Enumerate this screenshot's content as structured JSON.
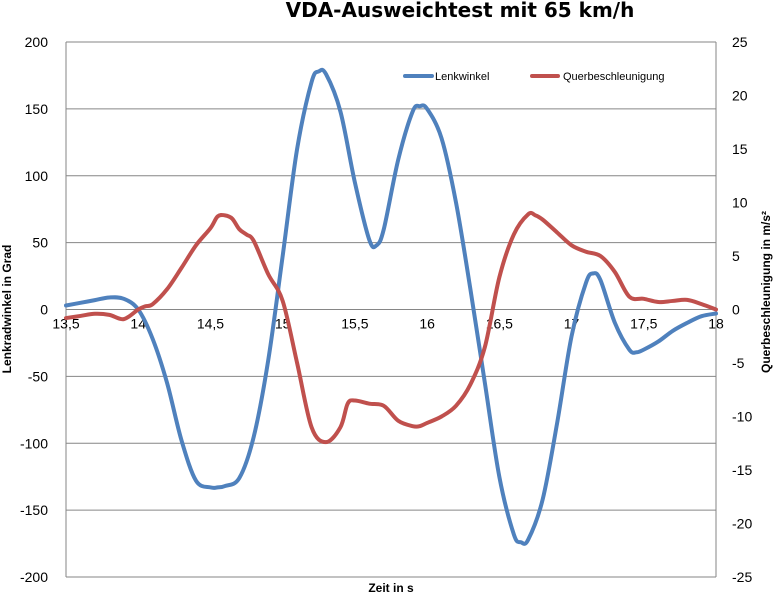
{
  "chart_data": {
    "type": "line",
    "title": "VDA-Ausweichtest mit 65 km/h",
    "xlabel": "Zeit in s",
    "ylabel_left": "Lenkradwinkel in Grad",
    "ylabel_right": "Querbeschleunigung  in m/s²",
    "xlim": [
      13.5,
      18
    ],
    "ylim_left": [
      -200,
      200
    ],
    "ylim_right": [
      -25,
      25
    ],
    "x_ticks": [
      "13,5",
      "14",
      "14,5",
      "15",
      "15,5",
      "16",
      "16,5",
      "17",
      "17,5",
      "18"
    ],
    "x_tick_values": [
      13.5,
      14,
      14.5,
      15,
      15.5,
      16,
      16.5,
      17,
      17.5,
      18
    ],
    "y_left_ticks": [
      "200",
      "150",
      "100",
      "50",
      "0",
      "-50",
      "-100",
      "-150",
      "-200"
    ],
    "y_left_tick_values": [
      200,
      150,
      100,
      50,
      0,
      -50,
      -100,
      -150,
      -200
    ],
    "y_right_ticks": [
      "25",
      "20",
      "15",
      "10",
      "5",
      "0",
      "-5",
      "-10",
      "-15",
      "-20",
      "-25"
    ],
    "y_right_tick_values": [
      25,
      20,
      15,
      10,
      5,
      0,
      -5,
      -10,
      -15,
      -20,
      -25
    ],
    "grid": "horizontal",
    "legend_position": "top-right",
    "series": [
      {
        "name": "Lenkwinkel",
        "axis": "left",
        "color": "#4f81bd",
        "x": [
          13.5,
          13.6,
          13.7,
          13.8,
          13.9,
          14.0,
          14.1,
          14.2,
          14.3,
          14.4,
          14.5,
          14.55,
          14.6,
          14.7,
          14.8,
          14.9,
          15.0,
          15.1,
          15.2,
          15.25,
          15.3,
          15.4,
          15.5,
          15.6,
          15.65,
          15.7,
          15.8,
          15.9,
          15.95,
          16.0,
          16.1,
          16.2,
          16.3,
          16.4,
          16.5,
          16.6,
          16.65,
          16.7,
          16.8,
          16.9,
          17.0,
          17.1,
          17.15,
          17.2,
          17.3,
          17.4,
          17.45,
          17.5,
          17.6,
          17.7,
          17.8,
          17.9,
          18.0
        ],
        "y": [
          3,
          5,
          7,
          9,
          8,
          0,
          -22,
          -55,
          -98,
          -128,
          -133,
          -133,
          -132,
          -126,
          -95,
          -38,
          40,
          120,
          170,
          178,
          176,
          148,
          95,
          52,
          48,
          60,
          112,
          148,
          152,
          150,
          128,
          80,
          15,
          -55,
          -125,
          -168,
          -174,
          -172,
          -142,
          -85,
          -20,
          20,
          27,
          22,
          -10,
          -30,
          -32,
          -30,
          -24,
          -16,
          -10,
          -5,
          -3
        ]
      },
      {
        "name": "Querbeschleunigung",
        "axis": "right",
        "color": "#c0504d",
        "x": [
          13.5,
          13.6,
          13.7,
          13.8,
          13.9,
          14.0,
          14.05,
          14.1,
          14.2,
          14.3,
          14.4,
          14.5,
          14.55,
          14.6,
          14.65,
          14.7,
          14.75,
          14.8,
          14.9,
          15.0,
          15.1,
          15.2,
          15.3,
          15.4,
          15.45,
          15.5,
          15.6,
          15.7,
          15.8,
          15.9,
          15.95,
          16.0,
          16.1,
          16.2,
          16.3,
          16.4,
          16.5,
          16.6,
          16.7,
          16.75,
          16.8,
          16.9,
          17.0,
          17.1,
          17.2,
          17.3,
          17.4,
          17.5,
          17.6,
          17.7,
          17.8,
          17.9,
          18.0
        ],
        "y": [
          -0.8,
          -0.6,
          -0.4,
          -0.5,
          -0.9,
          0.0,
          0.3,
          0.5,
          1.9,
          3.9,
          6.0,
          7.6,
          8.7,
          8.8,
          8.5,
          7.5,
          7.0,
          6.4,
          3.3,
          0.8,
          -5.0,
          -11.0,
          -12.4,
          -11.0,
          -8.8,
          -8.5,
          -8.8,
          -9.0,
          -10.4,
          -10.9,
          -10.9,
          -10.6,
          -10.0,
          -9.0,
          -7.0,
          -3.5,
          3.0,
          7.0,
          8.9,
          8.8,
          8.4,
          7.2,
          6.0,
          5.4,
          5.0,
          3.5,
          1.2,
          1.0,
          0.7,
          0.8,
          0.9,
          0.5,
          0.0
        ]
      }
    ]
  }
}
